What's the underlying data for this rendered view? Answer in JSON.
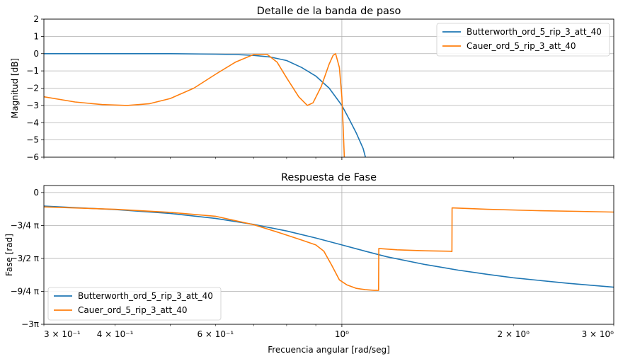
{
  "chart_data": [
    {
      "type": "line",
      "title": "Detalle de la banda de paso",
      "xlabel": "",
      "ylabel": "Magnitud [dB]",
      "xscale": "log",
      "xlim": [
        0.3,
        3.0
      ],
      "ylim": [
        -6,
        2
      ],
      "yticks": [
        2,
        1,
        0,
        -1,
        -2,
        -3,
        -4,
        -5,
        -6
      ],
      "ytick_labels": [
        "2",
        "1",
        "0",
        "−1",
        "−2",
        "−3",
        "−4",
        "−5",
        "−6"
      ],
      "grid": true,
      "legend_position": "top-right",
      "series": [
        {
          "name": "Butterworth_ord_5_rip_3_att_40",
          "color": "#1f77b4",
          "x": [
            0.3,
            0.4,
            0.5,
            0.6,
            0.65,
            0.7,
            0.75,
            0.8,
            0.85,
            0.9,
            0.95,
            1.0,
            1.03,
            1.06,
            1.09,
            1.1
          ],
          "y": [
            0.0,
            0.0,
            0.0,
            -0.03,
            -0.05,
            -0.1,
            -0.2,
            -0.4,
            -0.8,
            -1.3,
            -2.0,
            -3.0,
            -3.8,
            -4.6,
            -5.5,
            -6.0
          ]
        },
        {
          "name": "Cauer_ord_5_rip_3_att_40",
          "color": "#ff7f0e",
          "x": [
            0.3,
            0.34,
            0.38,
            0.42,
            0.46,
            0.5,
            0.55,
            0.6,
            0.65,
            0.7,
            0.74,
            0.77,
            0.8,
            0.84,
            0.87,
            0.89,
            0.92,
            0.95,
            0.965,
            0.975,
            0.99,
            1.0,
            1.005,
            1.01
          ],
          "y": [
            -2.5,
            -2.8,
            -2.95,
            -3.0,
            -2.9,
            -2.6,
            -2.0,
            -1.2,
            -0.5,
            -0.05,
            -0.05,
            -0.5,
            -1.4,
            -2.5,
            -3.0,
            -2.85,
            -1.9,
            -0.6,
            -0.1,
            0.0,
            -0.8,
            -2.5,
            -4.2,
            -6.0
          ]
        }
      ]
    },
    {
      "type": "line",
      "title": "Respuesta de Fase",
      "xlabel": "Frecuencia angular [rad/seg]",
      "ylabel": "Fase [rad]",
      "xscale": "log",
      "xlim": [
        0.3,
        3.0
      ],
      "xticks": [
        0.3,
        0.4,
        0.6,
        1.0,
        2.0,
        3.0
      ],
      "xtick_labels": [
        "3 × 10⁻¹",
        "4 × 10⁻¹",
        "6 × 10⁻¹",
        "10⁰",
        "2 × 10⁰",
        "3 × 10⁰"
      ],
      "ylim": [
        -9.42478,
        0.5
      ],
      "yticks": [
        0,
        -2.35619,
        -4.71239,
        -7.06858,
        -9.42478
      ],
      "ytick_labels": [
        "0",
        "−3/4 π",
        "−3/2 π",
        "−9/4 π",
        "−3π"
      ],
      "grid": true,
      "legend_position": "bottom-left",
      "series": [
        {
          "name": "Butterworth_ord_5_rip_3_att_40",
          "color": "#1f77b4",
          "x": [
            0.3,
            0.4,
            0.5,
            0.6,
            0.7,
            0.8,
            0.9,
            1.0,
            1.1,
            1.2,
            1.4,
            1.6,
            1.8,
            2.0,
            2.5,
            3.0
          ],
          "y": [
            -0.97,
            -1.22,
            -1.5,
            -1.85,
            -2.28,
            -2.75,
            -3.25,
            -3.75,
            -4.2,
            -4.6,
            -5.15,
            -5.55,
            -5.85,
            -6.1,
            -6.5,
            -6.77
          ]
        },
        {
          "name": "Cauer_ord_5_rip_3_att_40",
          "color": "#ff7f0e",
          "x": [
            0.3,
            0.4,
            0.5,
            0.6,
            0.7,
            0.78,
            0.85,
            0.9,
            0.93,
            0.96,
            0.99,
            1.02,
            1.06,
            1.1,
            1.14,
            1.16,
            1.161,
            1.25,
            1.4,
            1.55,
            1.56,
            1.561,
            1.8,
            2.2,
            2.6,
            3.0
          ],
          "y": [
            -1.03,
            -1.2,
            -1.42,
            -1.7,
            -2.3,
            -2.9,
            -3.4,
            -3.75,
            -4.2,
            -5.2,
            -6.25,
            -6.6,
            -6.85,
            -6.95,
            -7.0,
            -7.0,
            -4.0,
            -4.1,
            -4.17,
            -4.2,
            -4.22,
            -1.1,
            -1.2,
            -1.3,
            -1.35,
            -1.4
          ]
        }
      ]
    }
  ]
}
